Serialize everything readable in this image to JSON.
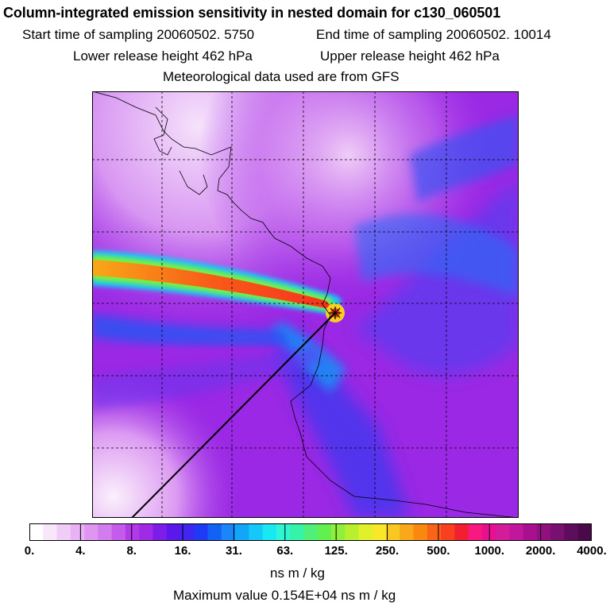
{
  "header": {
    "title": "Column-integrated emission sensitivity in nested domain for c130_060501",
    "start_label": "Start time of sampling 20060502.  5750",
    "end_label": "End time of sampling 20060502. 10014",
    "lower_label": "Lower release height  462 hPa",
    "upper_label": "Upper release height  462 hPa",
    "met_label": "Meteorological data used are from GFS"
  },
  "colorbar": {
    "labels": [
      "0.",
      "4.",
      "8.",
      "16.",
      "31.",
      "63.",
      "125.",
      "250.",
      "500.",
      "1000.",
      "2000.",
      "4000."
    ],
    "colors": [
      "#ffffff",
      "#f8e6fb",
      "#f0cdf7",
      "#e8b2f4",
      "#df96f1",
      "#d27cee",
      "#c45ceb",
      "#b33ae8",
      "#a12ae6",
      "#7c1ee8",
      "#5c18ec",
      "#3f26f0",
      "#1f3af4",
      "#1462f5",
      "#1a86f7",
      "#12a6f8",
      "#14c8f8",
      "#18e8f2",
      "#2ef5d2",
      "#36f3a8",
      "#4ef07a",
      "#62f050",
      "#8ef03a",
      "#b8f030",
      "#e0f02a",
      "#f8e828",
      "#f8c820",
      "#f8a818",
      "#f88810",
      "#f86418",
      "#f84020",
      "#f02030",
      "#f81880",
      "#e81090",
      "#d41c9a",
      "#c0189c",
      "#a8108e",
      "#901080",
      "#781070",
      "#5e0c5c",
      "#4a0a4a"
    ],
    "unit": "ns m / kg",
    "max_value_label": "Maximum value  0.154E+04 ns m / kg"
  },
  "map": {
    "receptor_marker": "star-icon",
    "colors": {
      "background": "#9a28e4",
      "plume_core": "#f82a1a",
      "ocean_low": "#3b52f2",
      "land_light": "#f0cdf7"
    }
  }
}
